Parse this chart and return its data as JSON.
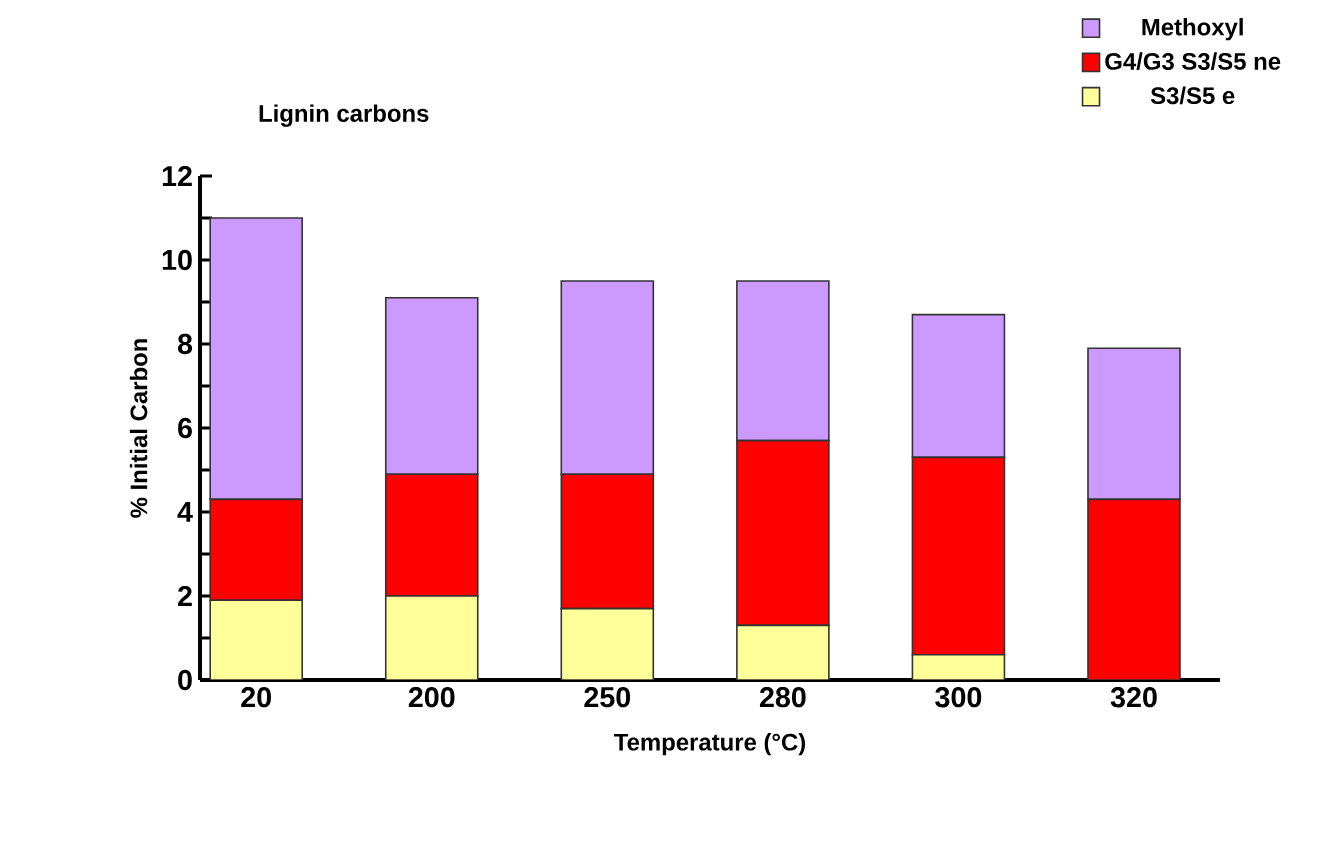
{
  "chart_data": {
    "type": "bar",
    "stacked": true,
    "title": "Lignin carbons",
    "xlabel": "Temperature (°C)",
    "ylabel": "% Initial Carbon",
    "categories": [
      "20",
      "200",
      "250",
      "280",
      "300",
      "320"
    ],
    "series": [
      {
        "name": "S3/S5 e",
        "color": "#ffff99",
        "values": [
          1.9,
          2.0,
          1.7,
          1.3,
          0.6,
          0
        ]
      },
      {
        "name": "G4/G3 S3/S5 ne",
        "color": "#ff0000",
        "values": [
          2.4,
          2.9,
          3.2,
          4.4,
          4.7,
          4.3
        ]
      },
      {
        "name": "Methoxyl",
        "color": "#cc99ff",
        "values": [
          6.7,
          4.2,
          4.6,
          3.8,
          3.4,
          3.6
        ]
      }
    ],
    "ylim": [
      0,
      12
    ],
    "yticks": [
      0,
      {
        "value": 1,
        "label": null
      },
      2,
      {
        "value": 3,
        "label": null
      },
      4,
      {
        "value": 5,
        "label": null
      },
      6,
      {
        "value": 7,
        "label": null
      },
      8,
      {
        "value": 9,
        "label": null
      },
      10,
      {
        "value": 11,
        "label": null
      },
      12
    ],
    "legend": "top right",
    "grid": false
  }
}
